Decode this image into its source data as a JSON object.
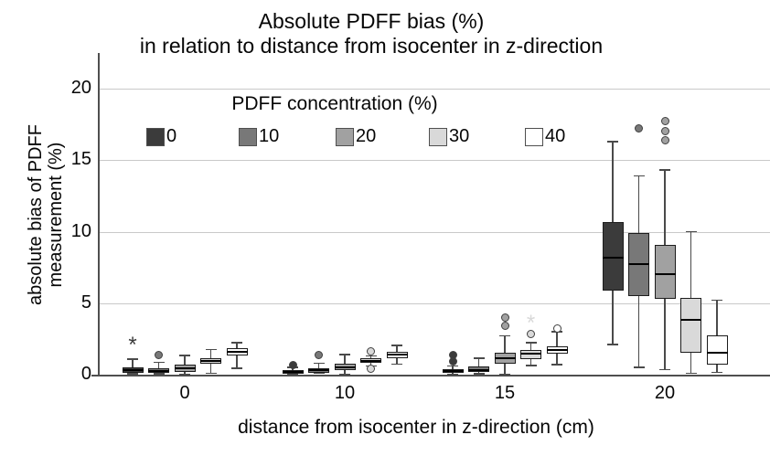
{
  "title": {
    "line1": "Absolute PDFF bias (%)",
    "line2": "in relation to distance from isocenter in z-direction"
  },
  "axes": {
    "y_label_line1": "absolute bias of PDFF",
    "y_label_line2": "measurement (%)",
    "x_label": "distance from isocenter in z-direction (cm)",
    "y_tick_labels": [
      "0",
      "5",
      "10",
      "15",
      "20"
    ],
    "x_tick_labels": [
      "0",
      "10",
      "15",
      "20"
    ]
  },
  "legend": {
    "title": "PDFF concentration (%)",
    "items": [
      {
        "label": "0",
        "color": "#3b3b3b"
      },
      {
        "label": "10",
        "color": "#787878"
      },
      {
        "label": "20",
        "color": "#a1a1a1"
      },
      {
        "label": "30",
        "color": "#d9d9d9"
      },
      {
        "label": "40",
        "color": "#ffffff"
      }
    ]
  },
  "colors": {
    "grid": "#c9c9c9",
    "axis": "#4f4f4f",
    "box_border": "#1c1c1c",
    "median": "#000000",
    "whisker": "#4a4a4a",
    "outlier_border": "#3f3f3f"
  },
  "chart_data": {
    "type": "boxplot",
    "title": "Absolute PDFF bias (%) in relation to distance from isocenter in z-direction",
    "xlabel": "distance from isocenter in z-direction (cm)",
    "ylabel": "absolute bias of PDFF measurement (%)",
    "ylim": [
      0,
      20
    ],
    "y_ticks": [
      0,
      5,
      10,
      15,
      20
    ],
    "grid": true,
    "legend_title": "PDFF concentration (%)",
    "legend_position": "top",
    "categories": [
      "0",
      "10",
      "15",
      "20"
    ],
    "series": [
      {
        "name": "0",
        "color": "#3b3b3b",
        "boxes": [
          {
            "low": 0.05,
            "q1": 0.1,
            "median": 0.3,
            "q3": 0.5,
            "high": 1.1,
            "outliers": [],
            "extremes": [
              2.05
            ]
          },
          {
            "low": 0.0,
            "q1": 0.05,
            "median": 0.2,
            "q3": 0.35,
            "high": 0.5,
            "outliers": [
              0.65
            ],
            "extremes": []
          },
          {
            "low": 0.0,
            "q1": 0.1,
            "median": 0.25,
            "q3": 0.4,
            "high": 0.6,
            "outliers": [
              0.9,
              1.35
            ],
            "extremes": []
          },
          {
            "low": 2.1,
            "q1": 5.85,
            "median": 8.2,
            "q3": 10.7,
            "high": 16.3,
            "outliers": [],
            "extremes": []
          }
        ]
      },
      {
        "name": "10",
        "color": "#787878",
        "boxes": [
          {
            "low": 0.05,
            "q1": 0.1,
            "median": 0.25,
            "q3": 0.45,
            "high": 0.85,
            "outliers": [
              1.4
            ],
            "extremes": []
          },
          {
            "low": 0.1,
            "q1": 0.15,
            "median": 0.3,
            "q3": 0.45,
            "high": 0.8,
            "outliers": [
              1.4
            ],
            "extremes": []
          },
          {
            "low": 0.05,
            "q1": 0.2,
            "median": 0.35,
            "q3": 0.55,
            "high": 1.15,
            "outliers": [],
            "extremes": []
          },
          {
            "low": 0.5,
            "q1": 5.5,
            "median": 7.7,
            "q3": 9.9,
            "high": 13.9,
            "outliers": [
              17.2
            ],
            "extremes": []
          }
        ]
      },
      {
        "name": "20",
        "color": "#a1a1a1",
        "boxes": [
          {
            "low": 0.0,
            "q1": 0.2,
            "median": 0.45,
            "q3": 0.7,
            "high": 1.35,
            "outliers": [],
            "extremes": []
          },
          {
            "low": 0.0,
            "q1": 0.3,
            "median": 0.5,
            "q3": 0.75,
            "high": 1.4,
            "outliers": [],
            "extremes": []
          },
          {
            "low": 0.0,
            "q1": 0.75,
            "median": 1.15,
            "q3": 1.55,
            "high": 2.7,
            "outliers": [
              3.4,
              4.0
            ],
            "extremes": []
          },
          {
            "low": 0.35,
            "q1": 5.3,
            "median": 7.0,
            "q3": 9.1,
            "high": 14.3,
            "outliers": [
              16.4,
              17.0,
              17.7
            ],
            "extremes": []
          }
        ]
      },
      {
        "name": "30",
        "color": "#d9d9d9",
        "boxes": [
          {
            "low": 0.1,
            "q1": 0.75,
            "median": 0.95,
            "q3": 1.15,
            "high": 1.75,
            "outliers": [],
            "extremes": []
          },
          {
            "low": 0.6,
            "q1": 0.8,
            "median": 0.95,
            "q3": 1.15,
            "high": 1.3,
            "outliers": [
              1.65,
              0.4
            ],
            "extremes": []
          },
          {
            "low": 0.65,
            "q1": 1.1,
            "median": 1.45,
            "q3": 1.75,
            "high": 2.25,
            "outliers": [
              2.85
            ],
            "extremes": [
              3.55
            ]
          },
          {
            "low": 0.1,
            "q1": 1.55,
            "median": 3.85,
            "q3": 5.35,
            "high": 10.0,
            "outliers": [],
            "extremes": []
          }
        ]
      },
      {
        "name": "40",
        "color": "#ffffff",
        "boxes": [
          {
            "low": 0.45,
            "q1": 1.35,
            "median": 1.6,
            "q3": 1.85,
            "high": 2.25,
            "outliers": [],
            "extremes": []
          },
          {
            "low": 0.75,
            "q1": 1.15,
            "median": 1.4,
            "q3": 1.6,
            "high": 2.05,
            "outliers": [],
            "extremes": []
          },
          {
            "low": 0.7,
            "q1": 1.5,
            "median": 1.75,
            "q3": 2.0,
            "high": 3.0,
            "outliers": [
              3.2
            ],
            "extremes": []
          },
          {
            "low": 0.15,
            "q1": 0.7,
            "median": 1.55,
            "q3": 2.75,
            "high": 5.2,
            "outliers": [],
            "extremes": []
          }
        ]
      }
    ]
  }
}
